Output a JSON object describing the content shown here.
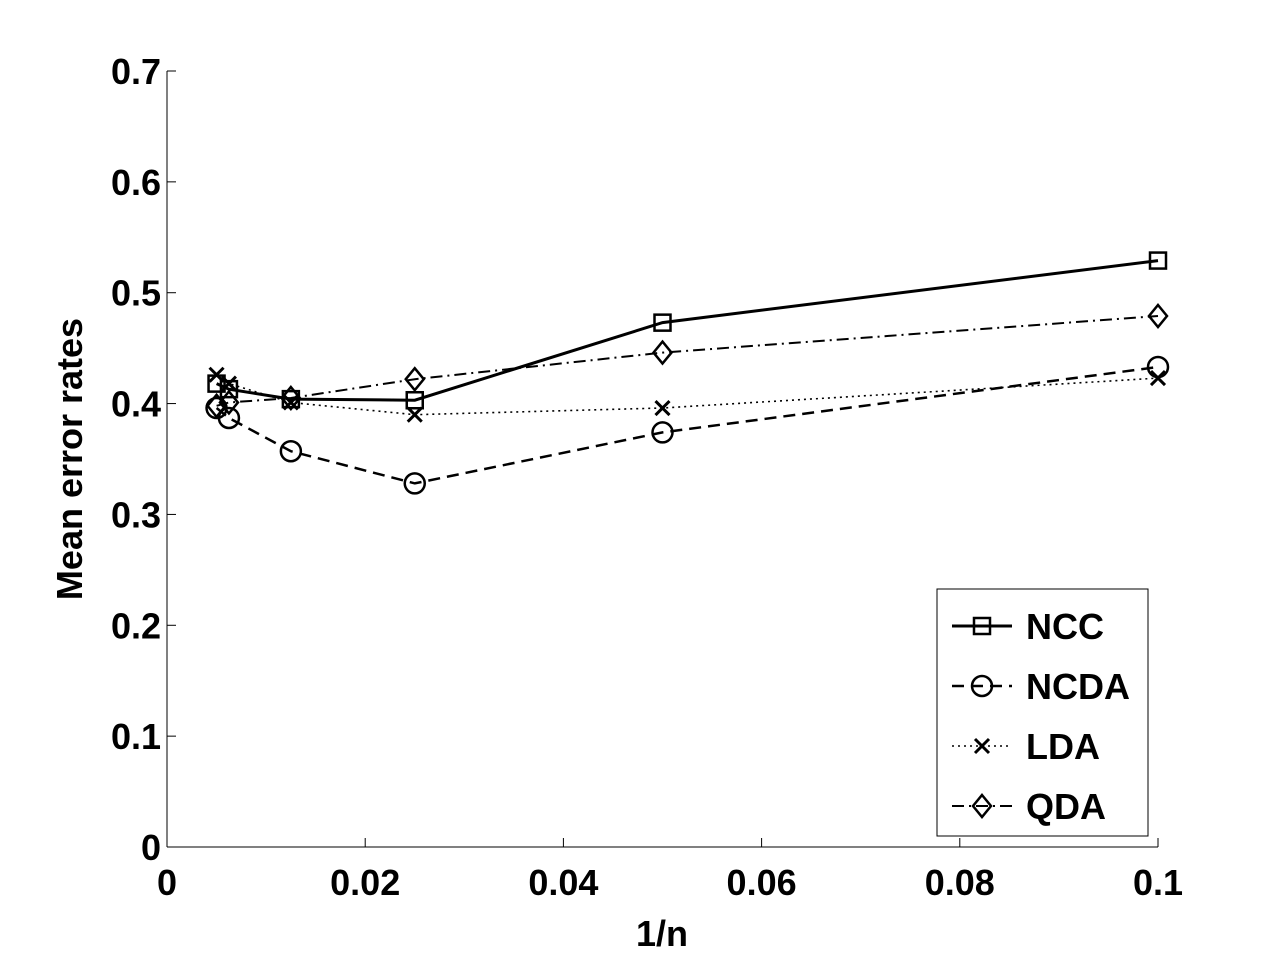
{
  "chart_data": {
    "type": "line",
    "title": "",
    "xlabel": "1/n",
    "ylabel": "Mean error rates",
    "xlim": [
      0,
      0.1
    ],
    "ylim": [
      0,
      0.7
    ],
    "xticks": [
      0,
      0.02,
      0.04,
      0.06,
      0.08,
      0.1
    ],
    "xtick_labels": [
      "0",
      "0.02",
      "0.04",
      "0.06",
      "0.08",
      "0.1"
    ],
    "yticks": [
      0,
      0.1,
      0.2,
      0.3,
      0.4,
      0.5,
      0.6,
      0.7
    ],
    "ytick_labels": [
      "0",
      "0.1",
      "0.2",
      "0.3",
      "0.4",
      "0.5",
      "0.6",
      "0.7"
    ],
    "grid": false,
    "legend_position": "bottom-right",
    "x": [
      0.005,
      0.00625,
      0.0125,
      0.025,
      0.05,
      0.1
    ],
    "series": [
      {
        "name": "NCC",
        "marker": "square",
        "line_style": "solid",
        "values": [
          0.418,
          0.413,
          0.404,
          0.403,
          0.473,
          0.529
        ]
      },
      {
        "name": "NCDA",
        "marker": "circle",
        "line_style": "dashed",
        "values": [
          0.396,
          0.387,
          0.357,
          0.328,
          0.374,
          0.433
        ]
      },
      {
        "name": "LDA",
        "marker": "x",
        "line_style": "dotted",
        "values": [
          0.426,
          0.418,
          0.401,
          0.39,
          0.396,
          0.423
        ]
      },
      {
        "name": "QDA",
        "marker": "diamond",
        "line_style": "dashdot",
        "values": [
          0.398,
          0.401,
          0.405,
          0.422,
          0.446,
          0.479
        ]
      }
    ]
  }
}
